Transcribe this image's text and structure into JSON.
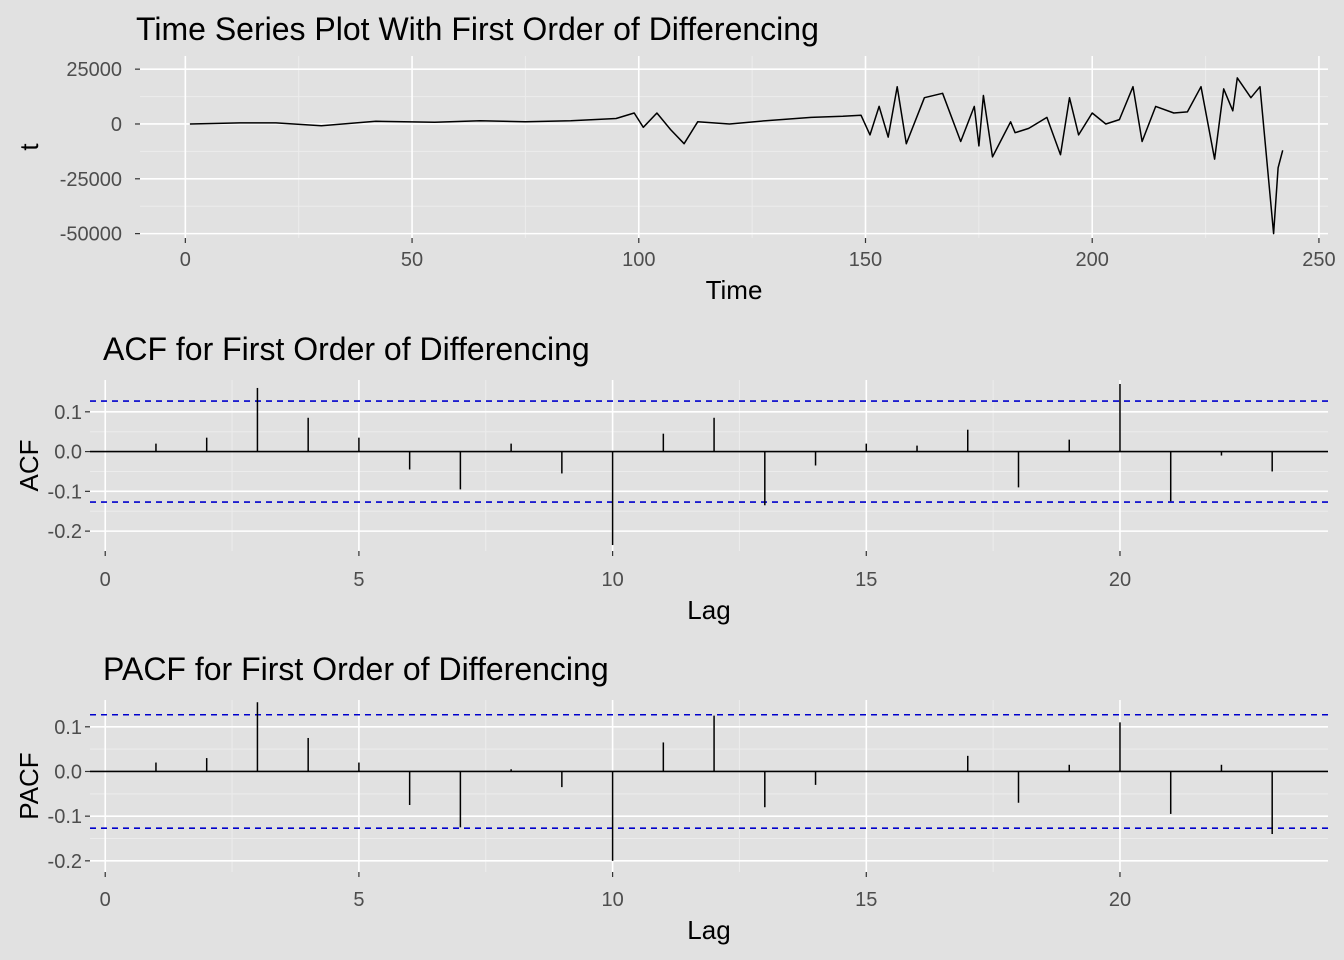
{
  "colors": {
    "background": "#e1e1e1",
    "panel": "#e1e1e1",
    "grid_major": "#ffffff",
    "grid_minor": "#ececec",
    "line": "#000000",
    "confidence": "#0000cc",
    "tick_text": "#4d4d4d"
  },
  "chart_data": [
    {
      "id": "ts",
      "type": "line",
      "title": "Time Series Plot With First Order of Differencing",
      "xlabel": "Time",
      "ylabel": "t",
      "xlim": [
        -10,
        252
      ],
      "ylim": [
        -52000,
        31000
      ],
      "x_ticks": [
        0,
        50,
        100,
        150,
        200,
        250
      ],
      "x_tick_labels": [
        "0",
        "50",
        "100",
        "150",
        "200",
        "250"
      ],
      "y_ticks": [
        25000,
        0,
        -25000,
        -50000
      ],
      "y_tick_labels": [
        "25000",
        "0",
        "-25000",
        "-50000"
      ],
      "grid": true,
      "series": [
        {
          "x": [
            1,
            12,
            20,
            30,
            42,
            55,
            65,
            75,
            85,
            95,
            99,
            101,
            104,
            107,
            110,
            113,
            120,
            128,
            138,
            145,
            149,
            151,
            153,
            155,
            157,
            159,
            163,
            167,
            171,
            174,
            175,
            176,
            178,
            182,
            183,
            186,
            190,
            193,
            195,
            197,
            200,
            203,
            206,
            209,
            211,
            214,
            218,
            221,
            224,
            227,
            229,
            231,
            232,
            235,
            237,
            240,
            241,
            242
          ],
          "y": [
            0,
            500,
            500,
            -800,
            1200,
            800,
            1500,
            1000,
            1500,
            2500,
            5000,
            -1500,
            5000,
            -2500,
            -9000,
            1000,
            0,
            1500,
            3000,
            3500,
            4000,
            -5000,
            8000,
            -6000,
            17000,
            -9000,
            12000,
            14000,
            -8000,
            8000,
            -10000,
            13000,
            -15000,
            1000,
            -4000,
            -2000,
            3000,
            -14000,
            12000,
            -5000,
            5000,
            0,
            2000,
            17000,
            -8000,
            8000,
            5000,
            5500,
            17000,
            -16000,
            16000,
            6000,
            21000,
            12000,
            17000,
            -50000,
            -20000,
            -12000
          ]
        }
      ]
    },
    {
      "id": "acf",
      "type": "bar",
      "title": "ACF for First Order of Differencing",
      "xlabel": "Lag",
      "ylabel": "ACF",
      "xlim": [
        -0.3,
        24.1
      ],
      "ylim": [
        -0.25,
        0.18
      ],
      "x_ticks": [
        0,
        5,
        10,
        15,
        20
      ],
      "x_tick_labels": [
        "0",
        "5",
        "10",
        "15",
        "20"
      ],
      "y_ticks": [
        0.1,
        0.0,
        -0.1,
        -0.2
      ],
      "y_tick_labels": [
        "0.1",
        "0.0",
        "-0.1",
        "-0.2"
      ],
      "grid": true,
      "confidence_limit": 0.127,
      "categories": [
        1,
        2,
        3,
        4,
        5,
        6,
        7,
        8,
        9,
        10,
        11,
        12,
        13,
        14,
        15,
        16,
        17,
        18,
        19,
        20,
        21,
        22,
        23
      ],
      "values": [
        0.02,
        0.035,
        0.16,
        0.085,
        0.035,
        -0.045,
        -0.095,
        0.02,
        -0.055,
        -0.235,
        0.045,
        0.085,
        -0.135,
        -0.035,
        0.02,
        0.015,
        0.055,
        -0.09,
        0.03,
        0.17,
        -0.125,
        -0.01,
        -0.05
      ]
    },
    {
      "id": "pacf",
      "type": "bar",
      "title": "PACF for First Order of Differencing",
      "xlabel": "Lag",
      "ylabel": "PACF",
      "xlim": [
        -0.3,
        24.1
      ],
      "ylim": [
        -0.225,
        0.16
      ],
      "x_ticks": [
        0,
        5,
        10,
        15,
        20
      ],
      "x_tick_labels": [
        "0",
        "5",
        "10",
        "15",
        "20"
      ],
      "y_ticks": [
        0.1,
        0.0,
        -0.1,
        -0.2
      ],
      "y_tick_labels": [
        "0.1",
        "0.0",
        "-0.1",
        "-0.2"
      ],
      "grid": true,
      "confidence_limit": 0.127,
      "categories": [
        1,
        2,
        3,
        4,
        5,
        6,
        7,
        8,
        9,
        10,
        11,
        12,
        13,
        14,
        15,
        16,
        17,
        18,
        19,
        20,
        21,
        22,
        23
      ],
      "values": [
        0.02,
        0.03,
        0.155,
        0.075,
        0.02,
        -0.075,
        -0.125,
        0.005,
        -0.035,
        -0.2,
        0.065,
        0.125,
        -0.08,
        -0.03,
        0.0,
        0.0,
        0.035,
        -0.07,
        0.015,
        0.11,
        -0.095,
        0.015,
        -0.14
      ]
    }
  ]
}
